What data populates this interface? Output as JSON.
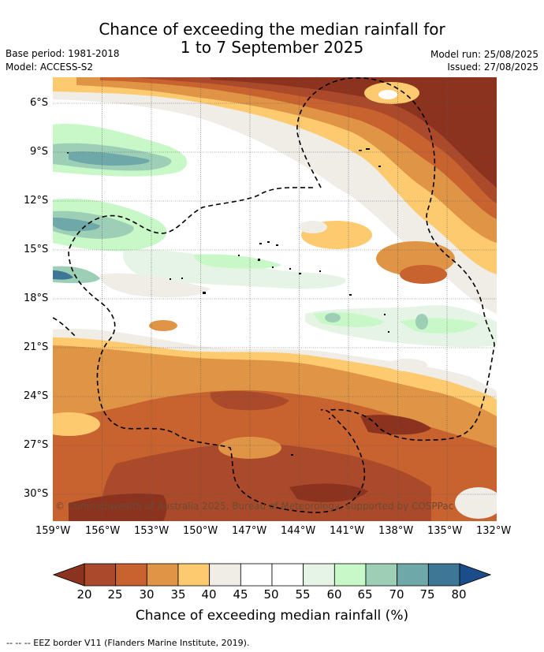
{
  "title": {
    "line1": "Chance of exceeding the median rainfall for",
    "line2": "1 to 7 September 2025"
  },
  "meta": {
    "base_period": "Base period: 1981-2018",
    "model": "Model: ACCESS-S2",
    "model_run": "Model run: 25/08/2025",
    "issued": "Issued: 27/08/2025"
  },
  "copyright": "© Commonwealth of Australia 2025, Bureau of Meteorology, supported by COSPPac",
  "lat_ticks": [
    "6°S",
    "9°S",
    "12°S",
    "15°S",
    "18°S",
    "21°S",
    "24°S",
    "27°S",
    "30°S"
  ],
  "lon_ticks": [
    "159°W",
    "156°W",
    "153°W",
    "150°W",
    "147°W",
    "144°W",
    "141°W",
    "138°W",
    "135°W",
    "132°W"
  ],
  "colorbar": {
    "labels": [
      "20",
      "25",
      "30",
      "35",
      "40",
      "45",
      "50",
      "55",
      "60",
      "65",
      "70",
      "75",
      "80"
    ],
    "colors": [
      "#ab4a2a",
      "#c8622f",
      "#df9446",
      "#fdca6f",
      "#f0ece6",
      "#ffffff",
      "#ffffff",
      "#e6f4e6",
      "#c8f8c8",
      "#9dcfb6",
      "#6fa8a8",
      "#3d7796"
    ],
    "under_color": "#8c3320",
    "over_color": "#1a4d8a",
    "title": "Chance of exceeding median rainfall (%)"
  },
  "legend": "--  --  -- EEZ border V11 (Flanders Marine Institute, 2019)."
}
